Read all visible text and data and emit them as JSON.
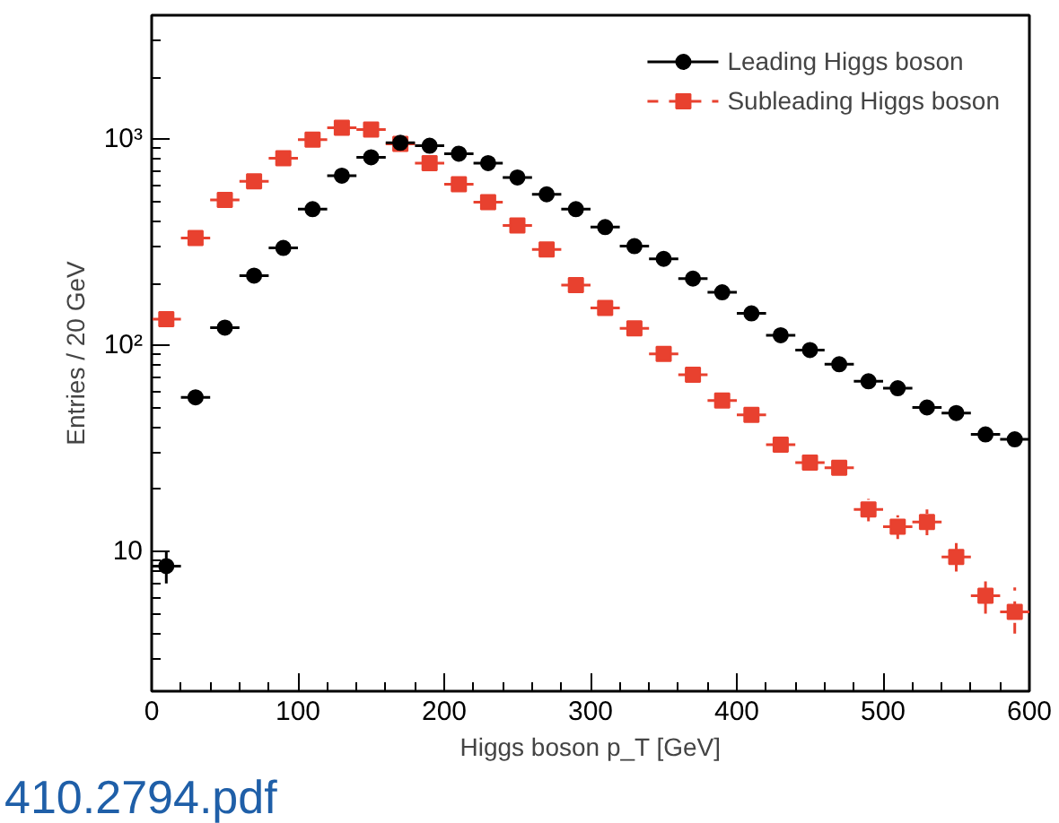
{
  "chart_data": {
    "type": "scatter",
    "xlabel": "Higgs boson p_T [GeV]",
    "ylabel": "Entries / 20 GeV",
    "x": [
      10,
      30,
      50,
      70,
      90,
      110,
      130,
      150,
      170,
      190,
      210,
      230,
      250,
      270,
      290,
      310,
      330,
      350,
      370,
      390,
      410,
      430,
      450,
      470,
      490,
      510,
      530,
      550,
      570,
      590
    ],
    "series": [
      {
        "name": "Leading Higgs boson",
        "color": "#000000",
        "marker": "circle",
        "line_style": "solid",
        "values": [
          8.5,
          56,
          122,
          218,
          297,
          458,
          666,
          818,
          962,
          931,
          852,
          767,
          653,
          541,
          458,
          375,
          303,
          263,
          211,
          181,
          143,
          112,
          95,
          81,
          67,
          62,
          50,
          47,
          37,
          35
        ],
        "xerrors": [
          10,
          10,
          10,
          10,
          10,
          10,
          10,
          10,
          10,
          10,
          10,
          10,
          10,
          10,
          10,
          10,
          10,
          10,
          10,
          10,
          10,
          10,
          10,
          10,
          10,
          10,
          10,
          10,
          10,
          10
        ],
        "errors": [
          [
            7,
            10
          ],
          null,
          null,
          null,
          null,
          null,
          null,
          null,
          null,
          null,
          null,
          null,
          null,
          null,
          null,
          null,
          null,
          null,
          null,
          null,
          null,
          null,
          null,
          null,
          null,
          null,
          null,
          null,
          null,
          null
        ]
      },
      {
        "name": "Subleading Higgs boson",
        "color": "#e8412f",
        "marker": "square",
        "line_style": "dashed",
        "values": [
          134,
          332,
          508,
          625,
          809,
          997,
          1138,
          1116,
          950,
          767,
          605,
          495,
          382,
          292,
          196,
          152,
          121,
          91,
          72,
          54,
          46,
          33,
          27,
          25.5,
          16,
          13.2,
          13.9,
          9.4,
          6.1,
          5.1
        ],
        "xerrors": [
          10,
          10,
          10,
          10,
          10,
          10,
          10,
          10,
          10,
          10,
          10,
          10,
          10,
          10,
          10,
          10,
          10,
          10,
          10,
          10,
          10,
          10,
          10,
          10,
          10,
          10,
          10,
          10,
          10,
          10
        ],
        "errors": [
          null,
          null,
          null,
          null,
          null,
          null,
          null,
          null,
          null,
          null,
          null,
          null,
          null,
          null,
          null,
          null,
          null,
          null,
          null,
          null,
          null,
          null,
          null,
          null,
          [
            14,
            18
          ],
          [
            11.5,
            15
          ],
          [
            12,
            16
          ],
          [
            8,
            11
          ],
          [
            5,
            7.5
          ],
          [
            4,
            6.7
          ]
        ]
      }
    ],
    "xlim": [
      0,
      600
    ],
    "xticks": [
      0,
      100,
      200,
      300,
      400,
      500,
      600
    ],
    "ylim": [
      2.1,
      4000
    ],
    "yticks": [
      10,
      {
        "value": 100,
        "label": "10²"
      },
      {
        "value": 1000,
        "label": "10³"
      }
    ],
    "log": "y",
    "grid": false,
    "legend": "top right",
    "annotations": [
      "410.2794.pdf"
    ]
  }
}
